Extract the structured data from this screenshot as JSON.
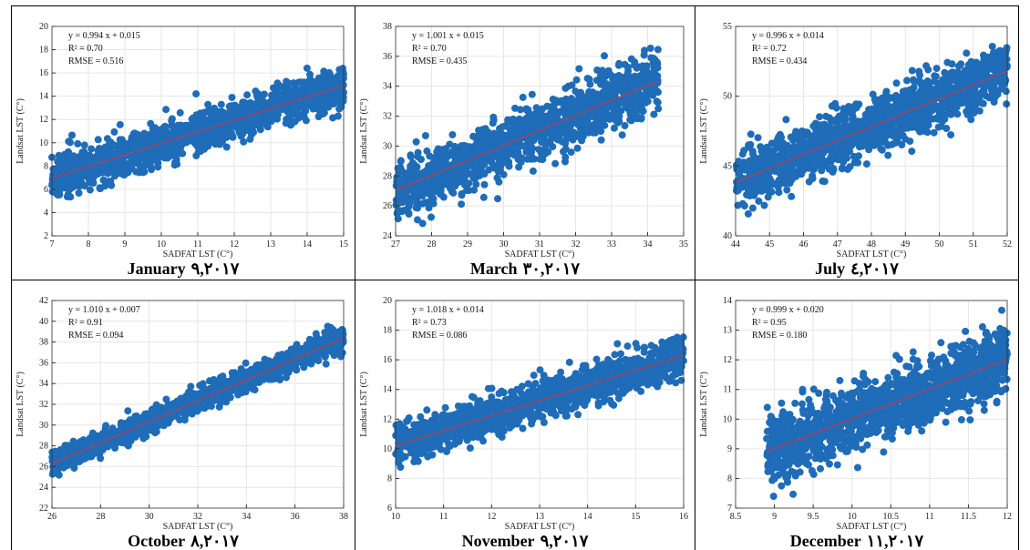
{
  "chart_data": [
    {
      "type": "scatter",
      "month": "January",
      "date": "۹,۲۰۱۷",
      "equation": "y = 0.994 x + 0.015",
      "r2": "0.70",
      "rmse": "0.516",
      "xlabel": "SADFAT LST (C°)",
      "ylabel": "Landsat LST (C°)",
      "xlim": [
        7,
        15
      ],
      "ylim": [
        2,
        20
      ],
      "xticks": [
        7,
        8,
        9,
        10,
        11,
        12,
        13,
        14,
        15
      ],
      "yticks": [
        2,
        4,
        6,
        8,
        10,
        12,
        14,
        16,
        18,
        20
      ],
      "fit": {
        "slope": 0.994,
        "intercept": 0.015
      },
      "spread": 1.6,
      "n": 1400,
      "seed": 11
    },
    {
      "type": "scatter",
      "month": "March",
      "date": "۳۰,۲۰۱۷",
      "equation": "y = 1.001 x + 0.015",
      "r2": "0.70",
      "rmse": "0.435",
      "xlabel": "SADFAT LST (C°)",
      "ylabel": "Landsat LST (C°)",
      "xlim": [
        27,
        35
      ],
      "ylim": [
        24,
        38
      ],
      "xticks": [
        27,
        28,
        29,
        30,
        31,
        32,
        33,
        34,
        35
      ],
      "yticks": [
        24,
        26,
        28,
        30,
        32,
        34,
        36,
        38
      ],
      "xdata": [
        27,
        34.3
      ],
      "fit": {
        "slope": 1.001,
        "intercept": 0.015
      },
      "spread": 1.7,
      "n": 1400,
      "seed": 23
    },
    {
      "type": "scatter",
      "month": "July",
      "date": "٤,۲۰۱۷",
      "equation": "y = 0.996 x + 0.014",
      "r2": "0.72",
      "rmse": "0.434",
      "xlabel": "SADFAT LST (C°)",
      "ylabel": "Landsat LST (C°)",
      "xlim": [
        44,
        52
      ],
      "ylim": [
        40,
        55
      ],
      "xticks": [
        44,
        45,
        46,
        47,
        48,
        49,
        50,
        51,
        52
      ],
      "yticks": [
        40,
        45,
        50,
        55
      ],
      "fit": {
        "slope": 0.996,
        "intercept": 0.014
      },
      "spread": 1.8,
      "n": 1400,
      "seed": 37
    },
    {
      "type": "scatter",
      "month": "October",
      "date": "۸,۲۰۱۷",
      "equation": "y = 1.010 x + 0.007",
      "r2": "0.91",
      "rmse": "0.094",
      "xlabel": "SADFAT LST (C°)",
      "ylabel": "Landsat LST (C°)",
      "xlim": [
        26,
        38
      ],
      "ylim": [
        22,
        42
      ],
      "xticks": [
        26,
        28,
        30,
        32,
        34,
        36,
        38
      ],
      "yticks": [
        22,
        24,
        26,
        28,
        30,
        32,
        34,
        36,
        38,
        40,
        42
      ],
      "fit": {
        "slope": 1.01,
        "intercept": 0.007
      },
      "spread": 1.0,
      "n": 1400,
      "seed": 41
    },
    {
      "type": "scatter",
      "month": "November",
      "date": "۹,۲۰۱۷",
      "equation": "y = 1.018 x + 0.014",
      "r2": "0.73",
      "rmse": "0.086",
      "xlabel": "SADFAT LST (C°)",
      "ylabel": "Landsat LST (C°)",
      "xlim": [
        10,
        16
      ],
      "ylim": [
        6,
        20
      ],
      "xticks": [
        10,
        11,
        12,
        13,
        14,
        15,
        16
      ],
      "yticks": [
        6,
        8,
        10,
        12,
        14,
        16,
        18,
        20
      ],
      "fit": {
        "slope": 1.018,
        "intercept": 0.014
      },
      "spread": 1.2,
      "n": 1400,
      "seed": 53
    },
    {
      "type": "scatter",
      "month": "December",
      "date": "۱۱,۲۰۱۷",
      "equation": "y = 0.999 x + 0.020",
      "r2": "0.95",
      "rmse": "0.180",
      "xlabel": "SADFAT LST (C°)",
      "ylabel": "Landsat LST (C°)",
      "xlim": [
        8.5,
        12
      ],
      "ylim": [
        7,
        14
      ],
      "xticks": [
        8.5,
        9,
        9.5,
        10,
        10.5,
        11,
        11.5,
        12
      ],
      "yticks": [
        7,
        8,
        9,
        10,
        11,
        12,
        13,
        14
      ],
      "xdata": [
        8.9,
        12
      ],
      "fit": {
        "slope": 0.999,
        "intercept": 0.02
      },
      "spread": 1.0,
      "n": 1400,
      "seed": 67
    }
  ],
  "colors": {
    "points": "#1f6cb8",
    "fit_line": "#c23b4a",
    "grid": "#e6e6e6",
    "axis": "#333333",
    "border": "#000000"
  }
}
